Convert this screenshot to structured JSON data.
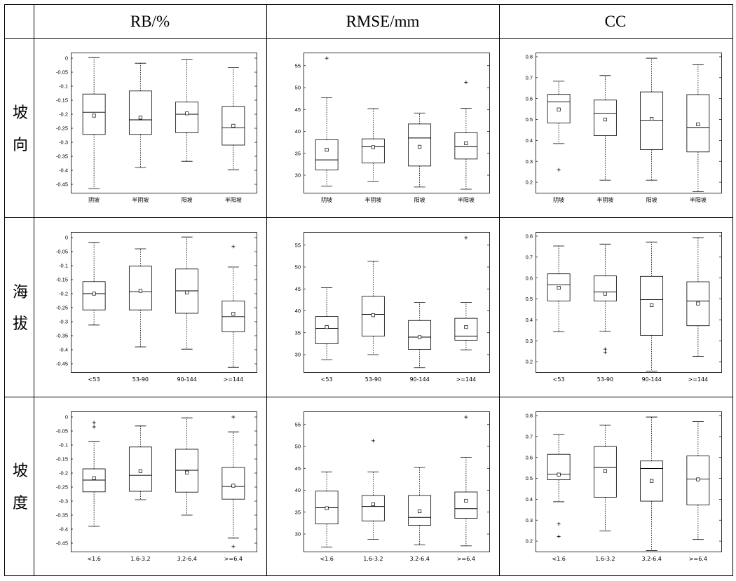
{
  "headers": {
    "rb": "RB/%",
    "rmse": "RMSE/mm",
    "cc": "CC"
  },
  "row_labels": {
    "aspect": [
      "坡",
      "向"
    ],
    "elevation": [
      "海",
      "拔"
    ],
    "slope": [
      "坡",
      "度"
    ]
  },
  "chart_data": [
    {
      "id": "rb-aspect",
      "type": "box",
      "ylabel": "",
      "ylim": [
        -0.48,
        0.02
      ],
      "yticks": [
        0,
        -0.05,
        -0.1,
        -0.15,
        -0.2,
        -0.25,
        -0.3,
        -0.35,
        -0.4,
        -0.45
      ],
      "ytick_labels": [
        "0",
        "-0.05",
        "-0.1",
        "-0.15",
        "-0.2",
        "-0.25",
        "-0.3",
        "-0.35",
        "-0.4",
        "-0.45"
      ],
      "categories": [
        "阴坡",
        "半阴坡",
        "阳坡",
        "半阳坡"
      ],
      "boxes": [
        {
          "whisker_low": -0.465,
          "q1": -0.272,
          "median": -0.193,
          "q3": -0.128,
          "whisker_high": 0.002,
          "mean": -0.205,
          "outliers": []
        },
        {
          "whisker_low": -0.39,
          "q1": -0.272,
          "median": -0.22,
          "q3": -0.117,
          "whisker_high": -0.018,
          "mean": -0.212,
          "outliers": []
        },
        {
          "whisker_low": -0.368,
          "q1": -0.266,
          "median": -0.2,
          "q3": -0.156,
          "whisker_high": -0.004,
          "mean": -0.197,
          "outliers": []
        },
        {
          "whisker_low": -0.398,
          "q1": -0.31,
          "median": -0.248,
          "q3": -0.172,
          "whisker_high": -0.034,
          "mean": -0.241,
          "outliers": []
        }
      ]
    },
    {
      "id": "rmse-aspect",
      "type": "box",
      "ylabel": "",
      "ylim": [
        26,
        58
      ],
      "yticks": [
        55,
        50,
        45,
        40,
        35,
        30
      ],
      "ytick_labels": [
        "55",
        "50",
        "45",
        "40",
        "35",
        "30"
      ],
      "categories": [
        "阴坡",
        "半阴坡",
        "阳坡",
        "半阳坡"
      ],
      "boxes": [
        {
          "whisker_low": 27.5,
          "q1": 31.2,
          "median": 33.5,
          "q3": 38.1,
          "whisker_high": 47.7,
          "mean": 35.8,
          "outliers": [
            56.7
          ]
        },
        {
          "whisker_low": 28.6,
          "q1": 32.8,
          "median": 36.5,
          "q3": 38.3,
          "whisker_high": 45.2,
          "mean": 36.4,
          "outliers": []
        },
        {
          "whisker_low": 27.3,
          "q1": 32.1,
          "median": 38.5,
          "q3": 41.7,
          "whisker_high": 44.2,
          "mean": 36.5,
          "outliers": []
        },
        {
          "whisker_low": 26.8,
          "q1": 33.7,
          "median": 36.5,
          "q3": 39.7,
          "whisker_high": 45.3,
          "mean": 37.3,
          "outliers": [
            51.2
          ]
        }
      ]
    },
    {
      "id": "cc-aspect",
      "type": "box",
      "ylabel": "",
      "ylim": [
        0.15,
        0.82
      ],
      "yticks": [
        0.8,
        0.7,
        0.6,
        0.5,
        0.4,
        0.3,
        0.2
      ],
      "ytick_labels": [
        "0.8",
        "0.7",
        "0.6",
        "0.5",
        "0.4",
        "0.3",
        "0.2"
      ],
      "categories": [
        "阴坡",
        "半阴坡",
        "阳坡",
        "半阳坡"
      ],
      "boxes": [
        {
          "whisker_low": 0.385,
          "q1": 0.483,
          "median": 0.585,
          "q3": 0.62,
          "whisker_high": 0.683,
          "mean": 0.548,
          "outliers": [
            0.26
          ]
        },
        {
          "whisker_low": 0.21,
          "q1": 0.423,
          "median": 0.53,
          "q3": 0.593,
          "whisker_high": 0.71,
          "mean": 0.5,
          "outliers": []
        },
        {
          "whisker_low": 0.21,
          "q1": 0.356,
          "median": 0.497,
          "q3": 0.632,
          "whisker_high": 0.793,
          "mean": 0.503,
          "outliers": []
        },
        {
          "whisker_low": 0.155,
          "q1": 0.345,
          "median": 0.462,
          "q3": 0.619,
          "whisker_high": 0.762,
          "mean": 0.477,
          "outliers": []
        }
      ]
    },
    {
      "id": "rb-elevation",
      "type": "box",
      "ylabel": "",
      "ylim": [
        -0.48,
        0.02
      ],
      "yticks": [
        0,
        -0.05,
        -0.1,
        -0.15,
        -0.2,
        -0.25,
        -0.3,
        -0.35,
        -0.4,
        -0.45
      ],
      "ytick_labels": [
        "0",
        "-0.05",
        "-0.1",
        "-0.15",
        "-0.2",
        "-0.25",
        "-0.3",
        "-0.35",
        "-0.4",
        "-0.45"
      ],
      "categories": [
        "<53",
        "53-90",
        "90-144",
        ">=144"
      ],
      "boxes": [
        {
          "whisker_low": -0.312,
          "q1": -0.258,
          "median": -0.2,
          "q3": -0.157,
          "whisker_high": -0.018,
          "mean": -0.2,
          "outliers": []
        },
        {
          "whisker_low": -0.39,
          "q1": -0.258,
          "median": -0.193,
          "q3": -0.102,
          "whisker_high": -0.04,
          "mean": -0.19,
          "outliers": []
        },
        {
          "whisker_low": -0.398,
          "q1": -0.27,
          "median": -0.19,
          "q3": -0.112,
          "whisker_high": 0.002,
          "mean": -0.196,
          "outliers": []
        },
        {
          "whisker_low": -0.463,
          "q1": -0.336,
          "median": -0.282,
          "q3": -0.226,
          "whisker_high": -0.105,
          "mean": -0.272,
          "outliers": [
            -0.032
          ]
        }
      ]
    },
    {
      "id": "rmse-elevation",
      "type": "box",
      "ylabel": "",
      "ylim": [
        26,
        58
      ],
      "yticks": [
        55,
        50,
        45,
        40,
        35,
        30
      ],
      "ytick_labels": [
        "55",
        "50",
        "45",
        "40",
        "35",
        "30"
      ],
      "categories": [
        "<53",
        "53-90",
        "90-144",
        ">=144"
      ],
      "boxes": [
        {
          "whisker_low": 28.8,
          "q1": 32.5,
          "median": 36,
          "q3": 38.7,
          "whisker_high": 45.3,
          "mean": 36.3,
          "outliers": []
        },
        {
          "whisker_low": 30,
          "q1": 34.2,
          "median": 39.2,
          "q3": 43.3,
          "whisker_high": 51.3,
          "mean": 39,
          "outliers": []
        },
        {
          "whisker_low": 27,
          "q1": 31.2,
          "median": 34,
          "q3": 37.8,
          "whisker_high": 41.9,
          "mean": 34,
          "outliers": []
        },
        {
          "whisker_low": 31.1,
          "q1": 33.3,
          "median": 34.2,
          "q3": 38.3,
          "whisker_high": 41.9,
          "mean": 36.3,
          "outliers": [
            56.7
          ]
        }
      ]
    },
    {
      "id": "cc-elevation",
      "type": "box",
      "ylabel": "",
      "ylim": [
        0.15,
        0.82
      ],
      "yticks": [
        0.8,
        0.7,
        0.6,
        0.5,
        0.4,
        0.3,
        0.2
      ],
      "ytick_labels": [
        "0.8",
        "0.7",
        "0.6",
        "0.5",
        "0.4",
        "0.3",
        "0.2"
      ],
      "categories": [
        "<53",
        "53-90",
        "90-144",
        ">=144"
      ],
      "boxes": [
        {
          "whisker_low": 0.343,
          "q1": 0.49,
          "median": 0.567,
          "q3": 0.62,
          "whisker_high": 0.753,
          "mean": 0.553,
          "outliers": []
        },
        {
          "whisker_low": 0.346,
          "q1": 0.49,
          "median": 0.533,
          "q3": 0.61,
          "whisker_high": 0.762,
          "mean": 0.525,
          "outliers": [
            0.26,
            0.245
          ]
        },
        {
          "whisker_low": 0.155,
          "q1": 0.326,
          "median": 0.497,
          "q3": 0.608,
          "whisker_high": 0.772,
          "mean": 0.47,
          "outliers": []
        },
        {
          "whisker_low": 0.225,
          "q1": 0.372,
          "median": 0.49,
          "q3": 0.582,
          "whisker_high": 0.793,
          "mean": 0.478,
          "outliers": []
        }
      ]
    },
    {
      "id": "rb-slope",
      "type": "box",
      "ylabel": "",
      "ylim": [
        -0.48,
        0.02
      ],
      "yticks": [
        0,
        -0.05,
        -0.1,
        -0.15,
        -0.2,
        -0.25,
        -0.3,
        -0.35,
        -0.4,
        -0.45
      ],
      "ytick_labels": [
        "0",
        "-0.05",
        "-0.1",
        "-0.15",
        "-0.2",
        "-0.25",
        "-0.3",
        "-0.35",
        "-0.4",
        "-0.45"
      ],
      "categories": [
        "<1.6",
        "1.6-3.2",
        "3.2-6.4",
        ">=6.4"
      ],
      "boxes": [
        {
          "whisker_low": -0.39,
          "q1": -0.267,
          "median": -0.225,
          "q3": -0.185,
          "whisker_high": -0.087,
          "mean": -0.218,
          "outliers": [
            -0.02,
            -0.035
          ]
        },
        {
          "whisker_low": -0.295,
          "q1": -0.265,
          "median": -0.208,
          "q3": -0.107,
          "whisker_high": -0.032,
          "mean": -0.193,
          "outliers": []
        },
        {
          "whisker_low": -0.35,
          "q1": -0.268,
          "median": -0.19,
          "q3": -0.115,
          "whisker_high": -0.003,
          "mean": -0.198,
          "outliers": []
        },
        {
          "whisker_low": -0.432,
          "q1": -0.293,
          "median": -0.248,
          "q3": -0.18,
          "whisker_high": -0.053,
          "mean": -0.245,
          "outliers": [
            0.0,
            -0.462
          ]
        }
      ]
    },
    {
      "id": "rmse-slope",
      "type": "box",
      "ylabel": "",
      "ylim": [
        26,
        58
      ],
      "yticks": [
        55,
        50,
        45,
        40,
        35,
        30
      ],
      "ytick_labels": [
        "55",
        "50",
        "45",
        "40",
        "35",
        "30"
      ],
      "categories": [
        "<1.6",
        "1.6-3.2",
        "3.2-6.4",
        ">=6.4"
      ],
      "boxes": [
        {
          "whisker_low": 27,
          "q1": 32.3,
          "median": 36,
          "q3": 39.8,
          "whisker_high": 44.2,
          "mean": 35.9,
          "outliers": []
        },
        {
          "whisker_low": 28.8,
          "q1": 33,
          "median": 36.3,
          "q3": 38.8,
          "whisker_high": 44.2,
          "mean": 36.8,
          "outliers": [
            51.3
          ]
        },
        {
          "whisker_low": 27.5,
          "q1": 32,
          "median": 33.8,
          "q3": 38.8,
          "whisker_high": 45.2,
          "mean": 35.2,
          "outliers": []
        },
        {
          "whisker_low": 27.3,
          "q1": 33.6,
          "median": 35.8,
          "q3": 39.6,
          "whisker_high": 47.5,
          "mean": 37.6,
          "outliers": [
            56.7
          ]
        }
      ]
    },
    {
      "id": "cc-slope",
      "type": "box",
      "ylabel": "",
      "ylim": [
        0.15,
        0.82
      ],
      "yticks": [
        0.8,
        0.7,
        0.6,
        0.5,
        0.4,
        0.3,
        0.2
      ],
      "ytick_labels": [
        "0.8",
        "0.7",
        "0.6",
        "0.5",
        "0.4",
        "0.3",
        "0.2"
      ],
      "categories": [
        "<1.6",
        "1.6-3.2",
        "3.2-6.4",
        ">=6.4"
      ],
      "boxes": [
        {
          "whisker_low": 0.388,
          "q1": 0.493,
          "median": 0.52,
          "q3": 0.615,
          "whisker_high": 0.711,
          "mean": 0.518,
          "outliers": [
            0.282,
            0.222
          ]
        },
        {
          "whisker_low": 0.248,
          "q1": 0.41,
          "median": 0.552,
          "q3": 0.652,
          "whisker_high": 0.754,
          "mean": 0.535,
          "outliers": []
        },
        {
          "whisker_low": 0.155,
          "q1": 0.391,
          "median": 0.547,
          "q3": 0.583,
          "whisker_high": 0.793,
          "mean": 0.488,
          "outliers": []
        },
        {
          "whisker_low": 0.208,
          "q1": 0.373,
          "median": 0.497,
          "q3": 0.607,
          "whisker_high": 0.771,
          "mean": 0.495,
          "outliers": []
        }
      ]
    }
  ]
}
